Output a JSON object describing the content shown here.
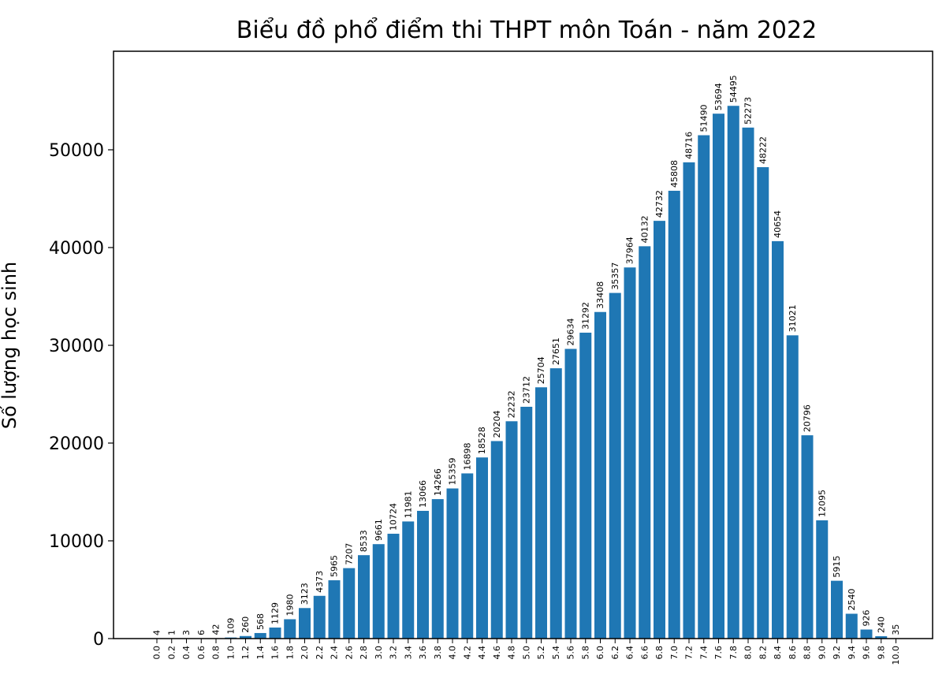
{
  "chart_data": {
    "type": "bar",
    "title": "Biểu đồ phổ điểm thi THPT môn Toán - năm 2022",
    "xlabel": "",
    "ylabel": "Số lượng học sinh",
    "ylim": [
      0,
      58800
    ],
    "yticks": [
      0,
      10000,
      20000,
      30000,
      40000,
      50000
    ],
    "grid": false,
    "color": "#1f77b4",
    "categories": [
      "0.0",
      "0.2",
      "0.4",
      "0.6",
      "0.8",
      "1.0",
      "1.2",
      "1.4",
      "1.6",
      "1.8",
      "2.0",
      "2.2",
      "2.4",
      "2.6",
      "2.8",
      "3.0",
      "3.2",
      "3.4",
      "3.6",
      "3.8",
      "4.0",
      "4.2",
      "4.4",
      "4.6",
      "4.8",
      "5.0",
      "5.2",
      "5.4",
      "5.6",
      "5.8",
      "6.0",
      "6.2",
      "6.4",
      "6.6",
      "6.8",
      "7.0",
      "7.2",
      "7.4",
      "7.6",
      "7.8",
      "8.0",
      "8.2",
      "8.4",
      "8.6",
      "8.8",
      "9.0",
      "9.2",
      "9.4",
      "9.6",
      "9.8",
      "10.0"
    ],
    "values": [
      4,
      1,
      3,
      6,
      42,
      109,
      260,
      568,
      1129,
      1980,
      3123,
      4373,
      5965,
      7207,
      8533,
      9661,
      10724,
      11981,
      13066,
      14266,
      15359,
      16898,
      18528,
      20204,
      22232,
      23712,
      25704,
      27651,
      29634,
      31292,
      33408,
      35357,
      37964,
      40132,
      42732,
      45808,
      48716,
      51490,
      53694,
      54495,
      52273,
      48222,
      40654,
      31021,
      20796,
      12095,
      5915,
      2540,
      926,
      240,
      35
    ]
  }
}
